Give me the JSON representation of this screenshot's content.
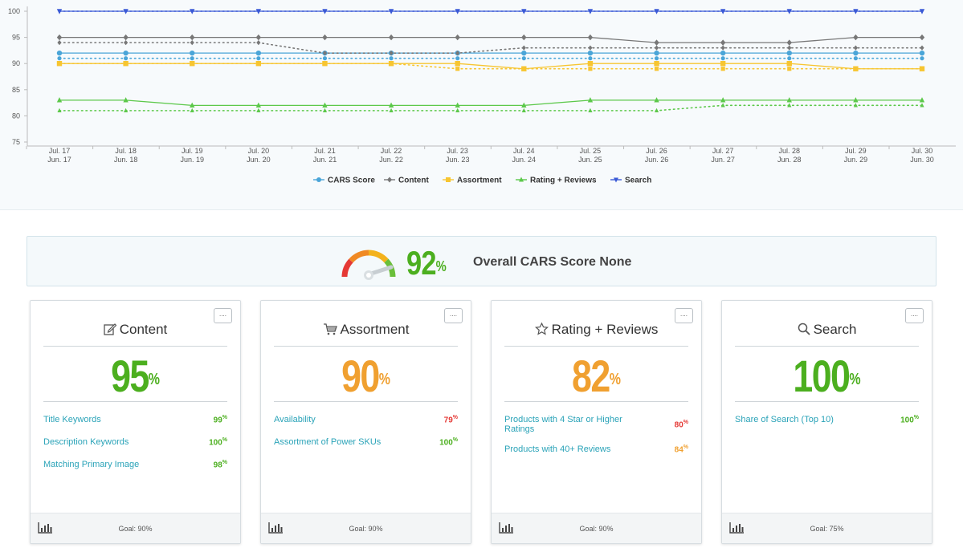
{
  "colors": {
    "cars": "#4aa5d8",
    "content": "#777777",
    "assortment": "#f7c531",
    "rating": "#5cc84a",
    "search": "#3a59d6",
    "good": "#4caf1f",
    "warn": "#f0a030",
    "bad": "#e53935"
  },
  "chart_data": {
    "type": "line",
    "categories_top": [
      "Jul. 17",
      "Jul. 18",
      "Jul. 19",
      "Jul. 20",
      "Jul. 21",
      "Jul. 22",
      "Jul. 23",
      "Jul. 24",
      "Jul. 25",
      "Jul. 26",
      "Jul. 27",
      "Jul. 28",
      "Jul. 29",
      "Jul. 30"
    ],
    "categories_bottom": [
      "Jun. 17",
      "Jun. 18",
      "Jun. 19",
      "Jun. 20",
      "Jun. 21",
      "Jun. 22",
      "Jun. 23",
      "Jun. 24",
      "Jun. 25",
      "Jun. 26",
      "Jun. 27",
      "Jun. 28",
      "Jun. 29",
      "Jun. 30"
    ],
    "ylim": [
      75,
      100
    ],
    "yticks": [
      75,
      80,
      85,
      90,
      95,
      100
    ],
    "legend_position": "bottom-center",
    "grid": false,
    "series": [
      {
        "name": "CARS Score",
        "marker": "circle",
        "color_key": "cars",
        "values": [
          92,
          92,
          92,
          92,
          92,
          92,
          92,
          92,
          92,
          92,
          92,
          92,
          92,
          92
        ],
        "prior": [
          91,
          91,
          91,
          91,
          91,
          91,
          91,
          91,
          91,
          91,
          91,
          91,
          91,
          91
        ]
      },
      {
        "name": "Content",
        "marker": "diamond",
        "color_key": "content",
        "values": [
          95,
          95,
          95,
          95,
          95,
          95,
          95,
          95,
          95,
          94,
          94,
          94,
          95,
          95
        ],
        "prior": [
          94,
          94,
          94,
          94,
          92,
          92,
          92,
          93,
          93,
          93,
          93,
          93,
          93,
          93
        ]
      },
      {
        "name": "Assortment",
        "marker": "square",
        "color_key": "assortment",
        "values": [
          90,
          90,
          90,
          90,
          90,
          90,
          90,
          89,
          90,
          90,
          90,
          90,
          89,
          89
        ],
        "prior": [
          90,
          90,
          90,
          90,
          90,
          90,
          89,
          89,
          89,
          89,
          89,
          89,
          89,
          89
        ]
      },
      {
        "name": "Rating + Reviews",
        "marker": "triangle-up",
        "color_key": "rating",
        "values": [
          83,
          83,
          82,
          82,
          82,
          82,
          82,
          82,
          83,
          83,
          83,
          83,
          83,
          83
        ],
        "prior": [
          81,
          81,
          81,
          81,
          81,
          81,
          81,
          81,
          81,
          81,
          82,
          82,
          82,
          82
        ]
      },
      {
        "name": "Search",
        "marker": "triangle-down",
        "color_key": "search",
        "values": [
          100,
          100,
          100,
          100,
          100,
          100,
          100,
          100,
          100,
          100,
          100,
          100,
          100,
          100
        ],
        "prior": [
          100,
          100,
          100,
          100,
          100,
          100,
          100,
          100,
          100,
          100,
          100,
          100,
          100,
          100
        ]
      }
    ]
  },
  "overall": {
    "score_value": 92,
    "score": "92",
    "pct_sign": "%",
    "label": "Overall CARS Score None"
  },
  "cards": [
    {
      "title": "Content",
      "icon": "edit-icon",
      "score": "95",
      "pct_sign": "%",
      "tone": "green",
      "more": "....",
      "goal": "Goal: 90%",
      "metrics": [
        {
          "label": "Title Keywords",
          "value": "99",
          "tone": "green"
        },
        {
          "label": "Description Keywords",
          "value": "100",
          "tone": "green"
        },
        {
          "label": "Matching Primary Image",
          "value": "98",
          "tone": "green"
        }
      ]
    },
    {
      "title": "Assortment",
      "icon": "cart-icon",
      "score": "90",
      "pct_sign": "%",
      "tone": "orange",
      "more": "....",
      "goal": "Goal: 90%",
      "metrics": [
        {
          "label": "Availability",
          "value": "79",
          "tone": "red"
        },
        {
          "label": "Assortment of Power SKUs",
          "value": "100",
          "tone": "green"
        }
      ]
    },
    {
      "title": "Rating + Reviews",
      "icon": "star-icon",
      "score": "82",
      "pct_sign": "%",
      "tone": "orange",
      "more": "....",
      "goal": "Goal: 90%",
      "metrics": [
        {
          "label": "Products with 4 Star or Higher Ratings",
          "value": "80",
          "tone": "red"
        },
        {
          "label": "Products with 40+ Reviews",
          "value": "84",
          "tone": "orange"
        }
      ]
    },
    {
      "title": "Search",
      "icon": "search-icon",
      "score": "100",
      "pct_sign": "%",
      "tone": "green",
      "more": "....",
      "goal": "Goal: 75%",
      "metrics": [
        {
          "label": "Share of Search (Top 10)",
          "value": "100",
          "tone": "green"
        }
      ]
    }
  ]
}
